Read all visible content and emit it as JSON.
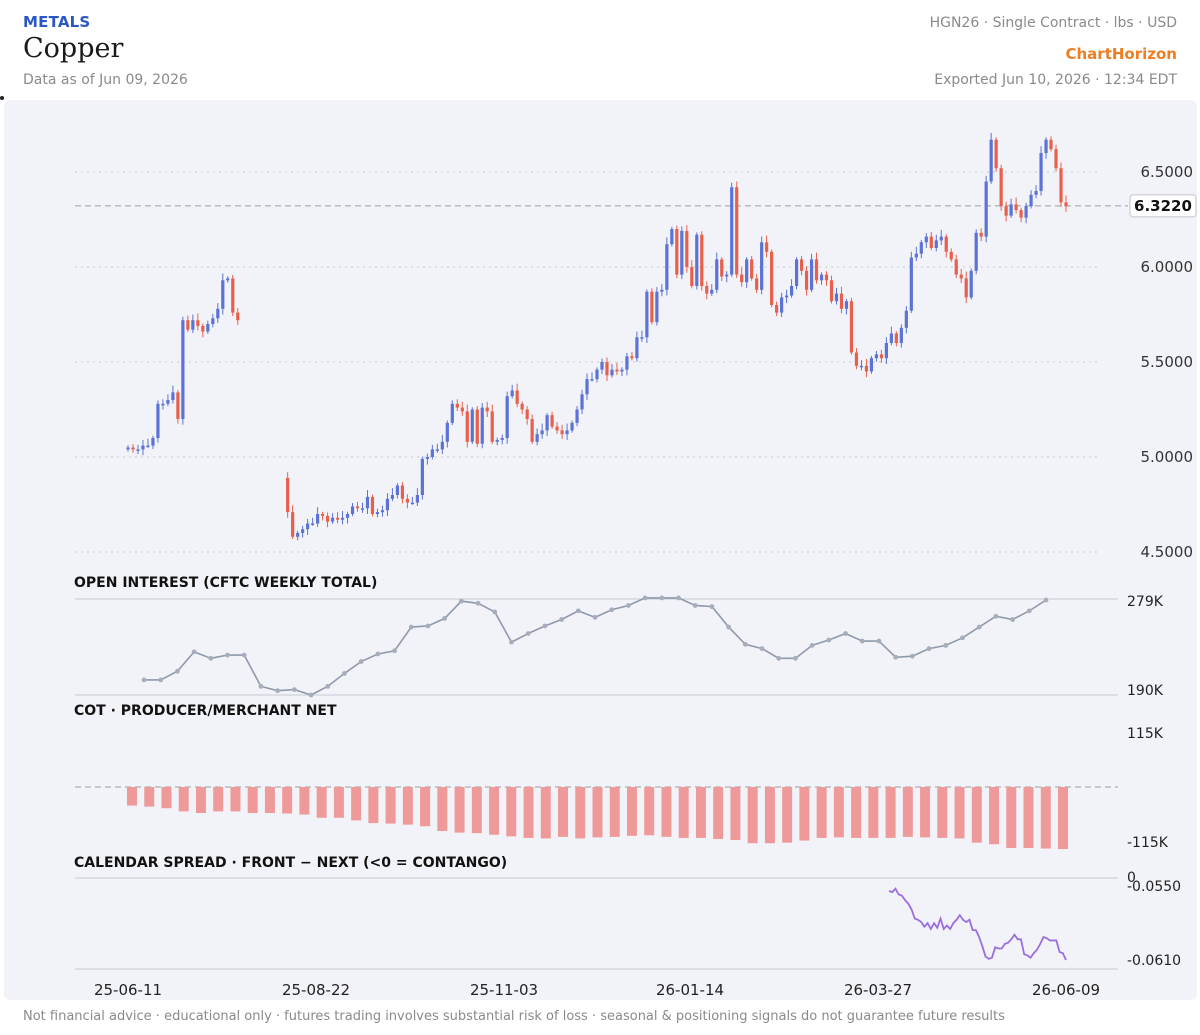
{
  "header": {
    "category": "METALS",
    "title": "Copper",
    "as_of": "Data as of Jun 09, 2026",
    "contract": "HGN26 · Single Contract · lbs · USD",
    "brand": "ChartHorizon",
    "exported": "Exported Jun 10, 2026 · 12:34 EDT"
  },
  "footer": {
    "disclaimer": "Not financial advice · educational only · futures trading involves substantial risk of loss · seasonal & positioning signals do not guarantee future results"
  },
  "colors": {
    "up": "#5b73d6",
    "down": "#e8604c",
    "oi_line": "#8e99ac",
    "cot_bar": "#ef9a9a",
    "spread_line": "#9b6ee0",
    "background": "#f2f3f8"
  },
  "chart_data": [
    {
      "type": "candlestick",
      "last_price_label": "6.3220",
      "last_price": 6.322,
      "ylim": [
        4.5,
        6.6
      ],
      "y_ticks": [
        "6.5000",
        "6.0000",
        "5.5000",
        "5.0000",
        "4.5000"
      ],
      "y_tick_values": [
        6.5,
        6.0,
        5.5,
        5.0,
        4.5
      ],
      "x_ticks": [
        "25-06-11",
        "25-08-22",
        "25-11-03",
        "26-01-14",
        "26-03-27",
        "26-06-09"
      ],
      "x_start": "2025-06-11",
      "x_end": "2026-06-09",
      "grid": "horizontal dotted",
      "closes": [
        5.05,
        5.04,
        5.04,
        5.06,
        5.06,
        5.1,
        5.28,
        5.28,
        5.3,
        5.34,
        5.2,
        5.72,
        5.67,
        5.72,
        5.69,
        5.66,
        5.7,
        5.73,
        5.78,
        5.93,
        5.94,
        5.76,
        5.72,
        4.71,
        4.58,
        4.6,
        4.62,
        4.65,
        4.65,
        4.7,
        4.69,
        4.66,
        4.68,
        4.67,
        4.68,
        4.7,
        4.74,
        4.73,
        4.73,
        4.79,
        4.7,
        4.71,
        4.72,
        4.78,
        4.8,
        4.85,
        4.78,
        4.76,
        4.76,
        4.8,
        4.99,
        5.0,
        5.04,
        5.04,
        5.08,
        5.18,
        5.28,
        5.26,
        5.24,
        5.08,
        5.25,
        5.07,
        5.26,
        5.24,
        5.08,
        5.09,
        5.1,
        5.32,
        5.35,
        5.28,
        5.25,
        5.2,
        5.08,
        5.12,
        5.14,
        5.22,
        5.16,
        5.14,
        5.12,
        5.14,
        5.18,
        5.25,
        5.33,
        5.41,
        5.41,
        5.46,
        5.5,
        5.43,
        5.46,
        5.45,
        5.46,
        5.53,
        5.52,
        5.63,
        5.63,
        5.87,
        5.71,
        5.87,
        5.88,
        6.12,
        6.2,
        5.96,
        6.19,
        6.0,
        5.9,
        6.17,
        5.9,
        5.86,
        5.88,
        6.04,
        5.95,
        5.96,
        6.42,
        5.96,
        5.92,
        6.04,
        5.94,
        5.88,
        6.13,
        6.08,
        5.8,
        5.76,
        5.84,
        5.85,
        5.9,
        6.04,
        5.98,
        5.88,
        6.04,
        5.93,
        5.96,
        5.93,
        5.82,
        5.86,
        5.78,
        5.82,
        5.55,
        5.48,
        5.48,
        5.45,
        5.52,
        5.54,
        5.52,
        5.6,
        5.65,
        5.6,
        5.68,
        5.77,
        6.05,
        6.07,
        6.13,
        6.16,
        6.1,
        6.14,
        6.16,
        6.08,
        6.04,
        5.96,
        5.94,
        5.84,
        5.98,
        6.18,
        6.16,
        6.45,
        6.67,
        6.52,
        6.32,
        6.27,
        6.33,
        6.3,
        6.26,
        6.32,
        6.38,
        6.4,
        6.6,
        6.67,
        6.62,
        6.52,
        6.34,
        6.32
      ]
    },
    {
      "type": "line",
      "title": "OPEN INTEREST (CFTC WEEKLY TOTAL)",
      "ylim": [
        190,
        279
      ],
      "y_ticks": [
        "279K",
        "190K"
      ],
      "values": [
        204,
        204,
        212,
        230,
        224,
        227,
        227,
        198,
        194,
        195,
        190,
        198,
        210,
        221,
        228,
        231,
        253,
        254,
        261,
        277,
        275,
        267,
        239,
        247,
        254,
        260,
        268,
        262,
        269,
        273,
        280,
        280,
        280,
        273,
        272,
        253,
        237,
        233,
        224,
        224,
        236,
        241,
        247,
        240,
        240,
        225,
        226,
        233,
        236,
        243,
        253,
        263,
        260,
        268,
        278
      ]
    },
    {
      "type": "bar",
      "title": "COT · PRODUCER/MERCHANT NET",
      "ylim": [
        -115,
        115
      ],
      "y_ticks": [
        "115K",
        "-115K"
      ],
      "values": [
        -35,
        -37,
        -40,
        -46,
        -49,
        -46,
        -46,
        -49,
        -49,
        -50,
        -52,
        -58,
        -58,
        -63,
        -68,
        -69,
        -71,
        -74,
        -83,
        -86,
        -87,
        -90,
        -93,
        -96,
        -97,
        -94,
        -97,
        -95,
        -94,
        -92,
        -91,
        -94,
        -96,
        -96,
        -98,
        -100,
        -106,
        -106,
        -105,
        -101,
        -96,
        -95,
        -96,
        -96,
        -96,
        -94,
        -95,
        -96,
        -97,
        -105,
        -108,
        -115,
        -115,
        -116,
        -117
      ]
    },
    {
      "type": "line",
      "title": "CALENDAR SPREAD · FRONT − NEXT (<0 = CONTANGO)",
      "ylim": [
        -0.062,
        -0.0535
      ],
      "y_ticks": [
        "0",
        "-0.0550",
        "-0.0610"
      ],
      "values": [
        -0.055,
        -0.0551,
        -0.0548,
        -0.0553,
        -0.0554,
        -0.0558,
        -0.0561,
        -0.0566,
        -0.0574,
        -0.0575,
        -0.0577,
        -0.0581,
        -0.0578,
        -0.0583,
        -0.0578,
        -0.0582,
        -0.0574,
        -0.0583,
        -0.058,
        -0.0583,
        -0.0578,
        -0.0575,
        -0.0571,
        -0.0575,
        -0.0577,
        -0.0575,
        -0.0584,
        -0.0584,
        -0.059,
        -0.0598,
        -0.0607,
        -0.0609,
        -0.0608,
        -0.0599,
        -0.06,
        -0.06,
        -0.0596,
        -0.0595,
        -0.0592,
        -0.0588,
        -0.0592,
        -0.0592,
        -0.0605,
        -0.0606,
        -0.0608,
        -0.0604,
        -0.0601,
        -0.0596,
        -0.059,
        -0.0591,
        -0.0593,
        -0.0593,
        -0.0593,
        -0.0603,
        -0.0604,
        -0.061
      ]
    }
  ]
}
